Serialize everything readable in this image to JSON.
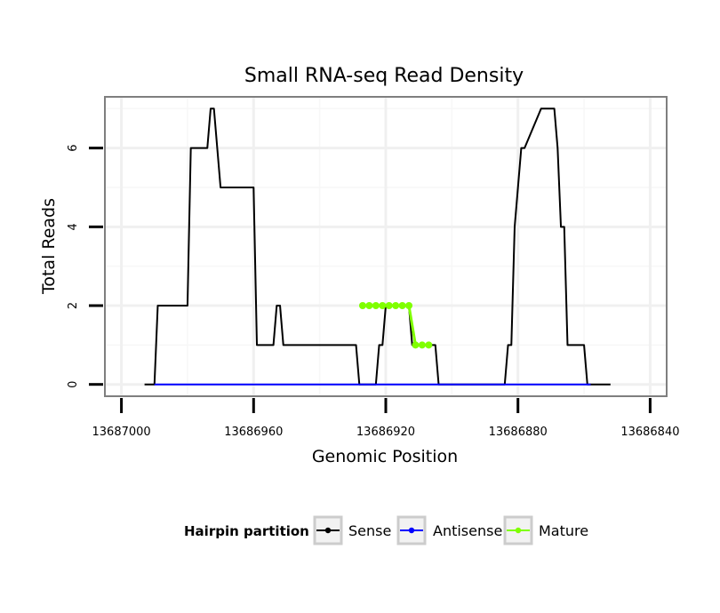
{
  "chart_data": {
    "type": "line",
    "title": "Small RNA-seq Read Density",
    "xlabel": "Genomic Position",
    "ylabel": "Total Reads",
    "xlim": [
      13687005,
      13686835
    ],
    "ylim": [
      -0.3,
      7.3
    ],
    "x_reversed": true,
    "grid": true,
    "x_ticks": [
      13687000,
      13686960,
      13686920,
      13686880,
      13686840
    ],
    "x_tick_labels": [
      "13687000",
      "13686960",
      "13686920",
      "13686880",
      "13686840"
    ],
    "y_ticks": [
      0,
      2,
      4,
      6
    ],
    "y_tick_labels": [
      "0",
      "2",
      "4",
      "6"
    ],
    "legend": {
      "title": "Hairpin partition",
      "placement": "bottom",
      "entries": [
        {
          "name": "Sense",
          "color": "#000000"
        },
        {
          "name": "Antisense",
          "color": "#0000ff"
        },
        {
          "name": "Mature",
          "color": "#7fff00"
        }
      ]
    },
    "series": [
      {
        "name": "Sense",
        "color": "#000000",
        "x": [
          13686993,
          13686990,
          13686989,
          13686980,
          13686979,
          13686974,
          13686973,
          13686972,
          13686971,
          13686970,
          13686968,
          13686960,
          13686959,
          13686954,
          13686953,
          13686952,
          13686951,
          13686950,
          13686948,
          13686929,
          13686928,
          13686923,
          13686922,
          13686921,
          13686920,
          13686913,
          13686912,
          13686905,
          13686904,
          13686903,
          13686885,
          13686884,
          13686883,
          13686882,
          13686881,
          13686879,
          13686878,
          13686873,
          13686872,
          13686871,
          13686869,
          13686868,
          13686867,
          13686866,
          13686865,
          13686860,
          13686859,
          13686852
        ],
        "y": [
          0,
          0,
          2,
          2,
          6,
          6,
          7,
          7,
          6,
          5,
          5,
          5,
          1,
          1,
          2,
          2,
          1,
          1,
          1,
          1,
          0,
          0,
          1,
          1,
          2,
          2,
          1,
          1,
          0,
          0,
          0,
          0,
          1,
          1,
          4,
          6,
          6,
          7,
          7,
          7,
          7,
          6,
          4,
          4,
          1,
          1,
          0,
          0
        ]
      },
      {
        "name": "Antisense",
        "color": "#0000ff",
        "x": [
          13686990,
          13686858
        ],
        "y": [
          0,
          0
        ]
      },
      {
        "name": "Mature",
        "color": "#7fff00",
        "x": [
          13686927,
          13686925,
          13686923,
          13686921,
          13686919,
          13686917,
          13686915,
          13686913,
          13686911,
          13686909,
          13686907
        ],
        "y": [
          2,
          2,
          2,
          2,
          2,
          2,
          2,
          2,
          1,
          1,
          1
        ]
      }
    ]
  }
}
